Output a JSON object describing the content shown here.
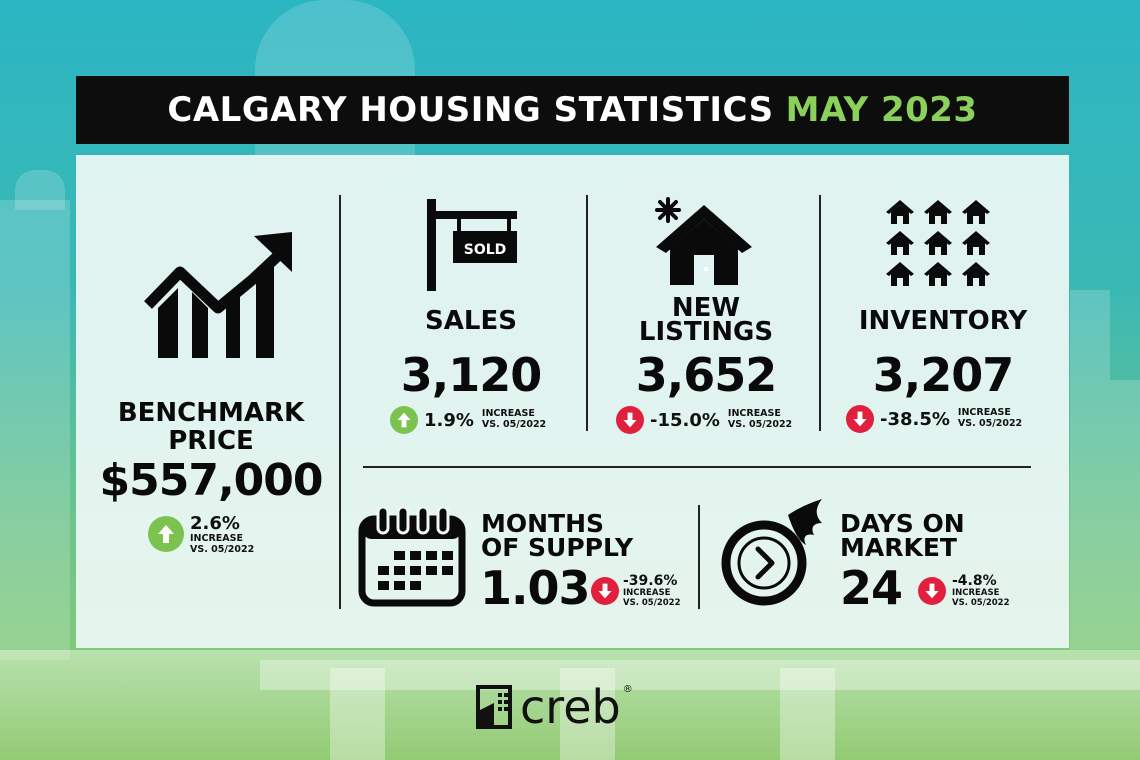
{
  "title": {
    "main": "CALGARY HOUSING STATISTICS",
    "highlight": "MAY 2023"
  },
  "stats": {
    "benchmark": {
      "label_line1": "BENCHMARK",
      "label_line2": "PRICE",
      "value": "$557,000",
      "change": "2.6%",
      "direction": "up",
      "note_line1": "INCREASE",
      "note_line2": "VS. 05/2022",
      "icon": "rising-bar-chart-icon"
    },
    "sales": {
      "label": "SALES",
      "value": "3,120",
      "change": "1.9%",
      "direction": "up",
      "note_line1": "INCREASE",
      "note_line2": "VS. 05/2022",
      "icon": "sold-sign-icon",
      "sign_text": "SOLD"
    },
    "new_listings": {
      "label_line1": "NEW",
      "label_line2": "LISTINGS",
      "value": "3,652",
      "change": "-15.0%",
      "direction": "down",
      "note_line1": "INCREASE",
      "note_line2": "VS. 05/2022",
      "icon": "new-house-icon"
    },
    "inventory": {
      "label": "INVENTORY",
      "value": "3,207",
      "change": "-38.5%",
      "direction": "down",
      "note_line1": "INCREASE",
      "note_line2": "VS. 05/2022",
      "icon": "houses-grid-icon"
    },
    "months_supply": {
      "label_line1": "MONTHS",
      "label_line2": "OF SUPPLY",
      "value": "1.03",
      "change": "-39.6%",
      "direction": "down",
      "note_line1": "INCREASE",
      "note_line2": "VS. 05/2022",
      "icon": "calendar-icon"
    },
    "days_on_market": {
      "label_line1": "DAYS ON",
      "label_line2": "MARKET",
      "value": "24",
      "change": "-4.8%",
      "direction": "down",
      "note_line1": "INCREASE",
      "note_line2": "VS. 05/2022",
      "icon": "fast-clock-icon"
    }
  },
  "colors": {
    "up": "#7cc24f",
    "down": "#e0203c",
    "highlight": "#8ad05a",
    "title_bar": "#0d0d0d"
  },
  "logo": {
    "text": "creb",
    "mark": "®"
  }
}
